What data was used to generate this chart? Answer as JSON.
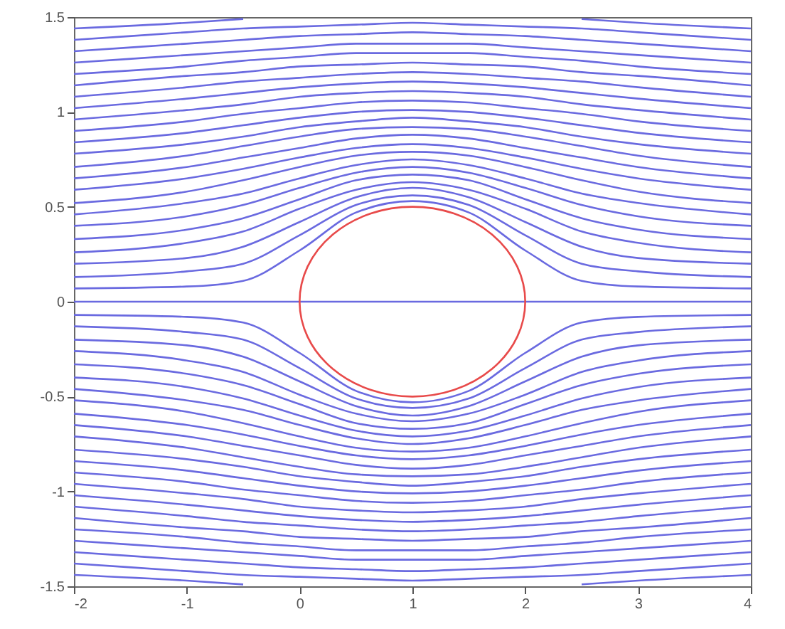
{
  "chart_data": {
    "type": "line",
    "x": [
      -2,
      -1,
      -0.5,
      0,
      0.5,
      1,
      1.5,
      2,
      2.5,
      3,
      4
    ],
    "xlim": [
      -2,
      4
    ],
    "ylim": [
      -1.5,
      1.5
    ],
    "xticks": [
      -2,
      -1,
      0,
      1,
      2,
      3,
      4
    ],
    "yticks": [
      -1.5,
      -1,
      -0.5,
      0,
      0.5,
      1,
      1.5
    ],
    "grid": false,
    "marker": "none",
    "line_style": "solid",
    "series": [
      {
        "color": "#6a6ae0",
        "values": [
          1.44,
          1.47,
          1.49,
          null,
          null,
          null,
          null,
          null,
          1.49,
          1.47,
          1.44
        ]
      },
      {
        "color": "#6a6ae0",
        "values": [
          1.38,
          1.42,
          1.44,
          1.45,
          1.46,
          1.47,
          1.46,
          1.45,
          1.44,
          1.42,
          1.38
        ]
      },
      {
        "color": "#6a6ae0",
        "values": [
          1.32,
          1.36,
          1.38,
          1.4,
          1.41,
          1.42,
          1.41,
          1.4,
          1.38,
          1.36,
          1.32
        ]
      },
      {
        "color": "#6a6ae0",
        "values": [
          1.26,
          1.3,
          1.32,
          1.34,
          1.36,
          1.36,
          1.36,
          1.34,
          1.32,
          1.3,
          1.26
        ]
      },
      {
        "color": "#6a6ae0",
        "values": [
          1.2,
          1.24,
          1.27,
          1.29,
          1.31,
          1.31,
          1.31,
          1.29,
          1.27,
          1.24,
          1.2
        ]
      },
      {
        "color": "#6a6ae0",
        "values": [
          1.14,
          1.19,
          1.21,
          1.24,
          1.25,
          1.26,
          1.25,
          1.24,
          1.21,
          1.19,
          1.14
        ]
      },
      {
        "color": "#6a6ae0",
        "values": [
          1.08,
          1.13,
          1.16,
          1.18,
          1.2,
          1.21,
          1.2,
          1.18,
          1.16,
          1.13,
          1.08
        ]
      },
      {
        "color": "#6a6ae0",
        "values": [
          1.02,
          1.07,
          1.1,
          1.13,
          1.15,
          1.16,
          1.15,
          1.13,
          1.1,
          1.07,
          1.02
        ]
      },
      {
        "color": "#6a6ae0",
        "values": [
          0.96,
          1.01,
          1.04,
          1.08,
          1.1,
          1.11,
          1.1,
          1.08,
          1.04,
          1.01,
          0.96
        ]
      },
      {
        "color": "#6a6ae0",
        "values": [
          0.9,
          0.95,
          0.99,
          1.02,
          1.05,
          1.06,
          1.05,
          1.02,
          0.99,
          0.95,
          0.9
        ]
      },
      {
        "color": "#6a6ae0",
        "values": [
          0.84,
          0.89,
          0.93,
          0.97,
          1,
          1.01,
          1,
          0.97,
          0.93,
          0.89,
          0.84
        ]
      },
      {
        "color": "#6a6ae0",
        "values": [
          0.78,
          0.83,
          0.87,
          0.92,
          0.95,
          0.97,
          0.95,
          0.92,
          0.87,
          0.83,
          0.78
        ]
      },
      {
        "color": "#6a6ae0",
        "values": [
          0.71,
          0.77,
          0.82,
          0.87,
          0.91,
          0.92,
          0.91,
          0.87,
          0.82,
          0.77,
          0.71
        ]
      },
      {
        "color": "#6a6ae0",
        "values": [
          0.65,
          0.71,
          0.76,
          0.81,
          0.86,
          0.88,
          0.86,
          0.81,
          0.76,
          0.71,
          0.65
        ]
      },
      {
        "color": "#6a6ae0",
        "values": [
          0.59,
          0.65,
          0.7,
          0.76,
          0.81,
          0.83,
          0.81,
          0.76,
          0.7,
          0.65,
          0.59
        ]
      },
      {
        "color": "#6a6ae0",
        "values": [
          0.52,
          0.58,
          0.64,
          0.71,
          0.77,
          0.79,
          0.77,
          0.71,
          0.64,
          0.58,
          0.52
        ]
      },
      {
        "color": "#6a6ae0",
        "values": [
          0.46,
          0.52,
          0.57,
          0.65,
          0.72,
          0.75,
          0.72,
          0.65,
          0.57,
          0.52,
          0.46
        ]
      },
      {
        "color": "#6a6ae0",
        "values": [
          0.4,
          0.45,
          0.51,
          0.6,
          0.68,
          0.71,
          0.68,
          0.6,
          0.51,
          0.45,
          0.4
        ]
      },
      {
        "color": "#6a6ae0",
        "values": [
          0.33,
          0.38,
          0.44,
          0.54,
          0.64,
          0.67,
          0.64,
          0.54,
          0.44,
          0.38,
          0.33
        ]
      },
      {
        "color": "#6a6ae0",
        "values": [
          0.26,
          0.31,
          0.37,
          0.49,
          0.59,
          0.63,
          0.59,
          0.49,
          0.37,
          0.31,
          0.26
        ]
      },
      {
        "color": "#6a6ae0",
        "values": [
          0.2,
          0.23,
          0.29,
          0.42,
          0.55,
          0.6,
          0.55,
          0.42,
          0.29,
          0.23,
          0.2
        ]
      },
      {
        "color": "#6a6ae0",
        "values": [
          0.13,
          0.16,
          0.2,
          0.35,
          0.51,
          0.56,
          0.51,
          0.35,
          0.2,
          0.16,
          0.13
        ]
      },
      {
        "color": "#6a6ae0",
        "values": [
          0.07,
          0.08,
          0.11,
          0.27,
          0.47,
          0.53,
          0.47,
          0.27,
          0.11,
          0.08,
          0.07
        ]
      },
      {
        "color": "#6a6ae0",
        "values": [
          0,
          0,
          0,
          0,
          0,
          0,
          0,
          0,
          0,
          0,
          0
        ]
      },
      {
        "color": "#6a6ae0",
        "values": [
          -0.07,
          -0.08,
          -0.11,
          -0.27,
          -0.47,
          -0.53,
          -0.47,
          -0.27,
          -0.11,
          -0.08,
          -0.07
        ]
      },
      {
        "color": "#6a6ae0",
        "values": [
          -0.13,
          -0.16,
          -0.2,
          -0.35,
          -0.51,
          -0.56,
          -0.51,
          -0.35,
          -0.2,
          -0.16,
          -0.13
        ]
      },
      {
        "color": "#6a6ae0",
        "values": [
          -0.2,
          -0.23,
          -0.29,
          -0.42,
          -0.55,
          -0.6,
          -0.55,
          -0.42,
          -0.29,
          -0.23,
          -0.2
        ]
      },
      {
        "color": "#6a6ae0",
        "values": [
          -0.26,
          -0.31,
          -0.37,
          -0.49,
          -0.59,
          -0.63,
          -0.59,
          -0.49,
          -0.37,
          -0.31,
          -0.26
        ]
      },
      {
        "color": "#6a6ae0",
        "values": [
          -0.33,
          -0.38,
          -0.44,
          -0.54,
          -0.64,
          -0.67,
          -0.64,
          -0.54,
          -0.44,
          -0.38,
          -0.33
        ]
      },
      {
        "color": "#6a6ae0",
        "values": [
          -0.4,
          -0.45,
          -0.51,
          -0.6,
          -0.68,
          -0.71,
          -0.68,
          -0.6,
          -0.51,
          -0.45,
          -0.4
        ]
      },
      {
        "color": "#6a6ae0",
        "values": [
          -0.46,
          -0.52,
          -0.57,
          -0.65,
          -0.72,
          -0.75,
          -0.72,
          -0.65,
          -0.57,
          -0.52,
          -0.46
        ]
      },
      {
        "color": "#6a6ae0",
        "values": [
          -0.52,
          -0.58,
          -0.64,
          -0.71,
          -0.77,
          -0.79,
          -0.77,
          -0.71,
          -0.64,
          -0.58,
          -0.52
        ]
      },
      {
        "color": "#6a6ae0",
        "values": [
          -0.59,
          -0.65,
          -0.7,
          -0.76,
          -0.81,
          -0.83,
          -0.81,
          -0.76,
          -0.7,
          -0.65,
          -0.59
        ]
      },
      {
        "color": "#6a6ae0",
        "values": [
          -0.65,
          -0.71,
          -0.76,
          -0.81,
          -0.86,
          -0.88,
          -0.86,
          -0.81,
          -0.76,
          -0.71,
          -0.65
        ]
      },
      {
        "color": "#6a6ae0",
        "values": [
          -0.71,
          -0.77,
          -0.82,
          -0.87,
          -0.91,
          -0.92,
          -0.91,
          -0.87,
          -0.82,
          -0.77,
          -0.71
        ]
      },
      {
        "color": "#6a6ae0",
        "values": [
          -0.78,
          -0.83,
          -0.87,
          -0.92,
          -0.95,
          -0.97,
          -0.95,
          -0.92,
          -0.87,
          -0.83,
          -0.78
        ]
      },
      {
        "color": "#6a6ae0",
        "values": [
          -0.84,
          -0.89,
          -0.93,
          -0.97,
          -1,
          -1.01,
          -1,
          -0.97,
          -0.93,
          -0.89,
          -0.84
        ]
      },
      {
        "color": "#6a6ae0",
        "values": [
          -0.9,
          -0.95,
          -0.99,
          -1.02,
          -1.05,
          -1.06,
          -1.05,
          -1.02,
          -0.99,
          -0.95,
          -0.9
        ]
      },
      {
        "color": "#6a6ae0",
        "values": [
          -0.96,
          -1.01,
          -1.04,
          -1.08,
          -1.1,
          -1.11,
          -1.1,
          -1.08,
          -1.04,
          -1.01,
          -0.96
        ]
      },
      {
        "color": "#6a6ae0",
        "values": [
          -1.02,
          -1.07,
          -1.1,
          -1.13,
          -1.15,
          -1.16,
          -1.15,
          -1.13,
          -1.1,
          -1.07,
          -1.02
        ]
      },
      {
        "color": "#6a6ae0",
        "values": [
          -1.08,
          -1.13,
          -1.16,
          -1.18,
          -1.2,
          -1.21,
          -1.2,
          -1.18,
          -1.16,
          -1.13,
          -1.08
        ]
      },
      {
        "color": "#6a6ae0",
        "values": [
          -1.14,
          -1.19,
          -1.21,
          -1.24,
          -1.25,
          -1.26,
          -1.25,
          -1.24,
          -1.21,
          -1.19,
          -1.14
        ]
      },
      {
        "color": "#6a6ae0",
        "values": [
          -1.2,
          -1.24,
          -1.27,
          -1.29,
          -1.31,
          -1.31,
          -1.31,
          -1.29,
          -1.27,
          -1.24,
          -1.2
        ]
      },
      {
        "color": "#6a6ae0",
        "values": [
          -1.26,
          -1.3,
          -1.32,
          -1.34,
          -1.36,
          -1.36,
          -1.36,
          -1.34,
          -1.32,
          -1.3,
          -1.26
        ]
      },
      {
        "color": "#6a6ae0",
        "values": [
          -1.32,
          -1.36,
          -1.38,
          -1.4,
          -1.41,
          -1.42,
          -1.41,
          -1.4,
          -1.38,
          -1.36,
          -1.32
        ]
      },
      {
        "color": "#6a6ae0",
        "values": [
          -1.38,
          -1.42,
          -1.44,
          -1.45,
          -1.46,
          -1.47,
          -1.46,
          -1.45,
          -1.44,
          -1.42,
          -1.38
        ]
      },
      {
        "color": "#6a6ae0",
        "values": [
          -1.44,
          -1.47,
          -1.49,
          null,
          null,
          null,
          null,
          null,
          -1.49,
          -1.47,
          -1.44
        ]
      }
    ]
  }
}
